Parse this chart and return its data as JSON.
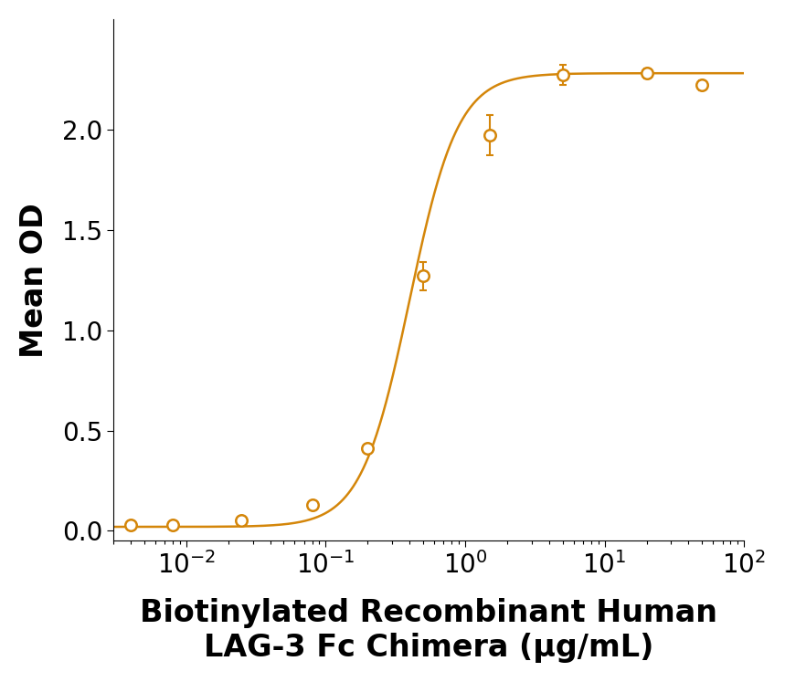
{
  "x_data": [
    0.004,
    0.008,
    0.025,
    0.08,
    0.2,
    0.5,
    1.5,
    5.0,
    20.0,
    50.0
  ],
  "y_data": [
    0.03,
    0.03,
    0.05,
    0.13,
    0.41,
    1.27,
    1.97,
    2.27,
    2.28,
    2.22
  ],
  "y_err": [
    0.008,
    0.005,
    0.008,
    0.015,
    0.02,
    0.07,
    0.1,
    0.05,
    0.025,
    0.025
  ],
  "color": "#D4860A",
  "marker": "o",
  "marker_facecolor": "white",
  "marker_edgewidth": 1.8,
  "marker_size": 9,
  "line_width": 1.8,
  "xlabel": "Biotinylated Recombinant Human\nLAG-3 Fc Chimera (μg/mL)",
  "ylabel": "Mean OD",
  "xlabel_fontsize": 24,
  "ylabel_fontsize": 24,
  "tick_fontsize": 20,
  "xlabel_fontweight": "bold",
  "ylabel_fontweight": "bold",
  "xlim": [
    0.003,
    100
  ],
  "ylim": [
    -0.05,
    2.55
  ],
  "yticks": [
    0.0,
    0.5,
    1.0,
    1.5,
    2.0
  ],
  "background_color": "#ffffff"
}
